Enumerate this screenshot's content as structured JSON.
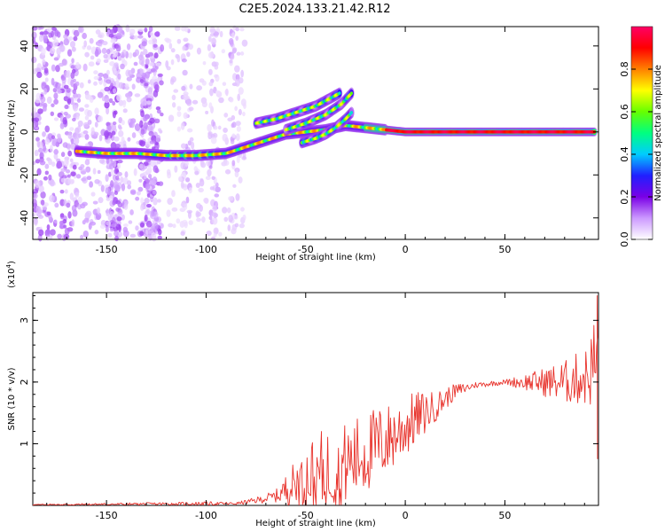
{
  "title": "C2E5.2024.133.21.42.R12",
  "chart_data": [
    {
      "type": "heatmap",
      "xlabel": "Height of straight line (km)",
      "ylabel": "Frequency (Hz)",
      "xlim": [
        -187,
        97
      ],
      "ylim": [
        -50,
        49
      ],
      "xticks": [
        -150,
        -100,
        -50,
        0,
        50
      ],
      "yticks": [
        -40,
        -20,
        0,
        20,
        40
      ],
      "colorbar": {
        "label": "Normalized spectral amplitude",
        "range": [
          0,
          1
        ],
        "ticks": [
          0.0,
          0.2,
          0.4,
          0.6,
          0.8
        ],
        "tick_labels": [
          "0.0",
          "0.2",
          "0.4",
          "0.6",
          "0.8"
        ],
        "colormap": [
          "#ffffff",
          "#cc99ff",
          "#7a00e6",
          "#2020ff",
          "#00ccff",
          "#00ff80",
          "#66ff00",
          "#ffff00",
          "#ff8000",
          "#ff0000",
          "#ff0066"
        ]
      },
      "features": [
        {
          "name": "main trace",
          "points": [
            [
              -165,
              -9
            ],
            [
              -150,
              -10
            ],
            [
              -135,
              -10
            ],
            [
              -120,
              -11
            ],
            [
              -105,
              -11
            ],
            [
              -90,
              -10
            ],
            [
              -80,
              -7
            ],
            [
              -70,
              -4
            ],
            [
              -60,
              -1
            ],
            [
              -50,
              0
            ],
            [
              -40,
              1
            ],
            [
              -30,
              3
            ],
            [
              -20,
              2
            ],
            [
              -10,
              1
            ],
            [
              0,
              0
            ],
            [
              20,
              0
            ],
            [
              50,
              0
            ],
            [
              80,
              0
            ],
            [
              95,
              0
            ]
          ]
        },
        {
          "name": "upper branch",
          "points": [
            [
              -75,
              4
            ],
            [
              -65,
              6
            ],
            [
              -55,
              9
            ],
            [
              -45,
              12
            ],
            [
              -35,
              17
            ],
            [
              -33,
              18
            ]
          ]
        },
        {
          "name": "middle branch",
          "points": [
            [
              -60,
              1
            ],
            [
              -50,
              4
            ],
            [
              -40,
              8
            ],
            [
              -32,
              13
            ],
            [
              -27,
              18
            ]
          ]
        },
        {
          "name": "lower branch",
          "points": [
            [
              -52,
              -5
            ],
            [
              -45,
              -3
            ],
            [
              -40,
              -1
            ],
            [
              -35,
              2
            ],
            [
              -30,
              6
            ],
            [
              -27,
              9
            ]
          ]
        }
      ]
    },
    {
      "type": "line",
      "xlabel": "Height of straight line (km)",
      "ylabel": "SNR (10 * v/v)",
      "y_multiplier": "(x10",
      "y_multiplier_exp": "4",
      "xlim": [
        -187,
        97
      ],
      "ylim": [
        0,
        3.45
      ],
      "xticks": [
        -150,
        -100,
        -50,
        0,
        50
      ],
      "yticks": [
        1,
        2,
        3
      ],
      "color": "#e8322b",
      "envelope": [
        {
          "x": -187,
          "mean": 0.01,
          "amp": 0.01
        },
        {
          "x": -100,
          "mean": 0.03,
          "amp": 0.03
        },
        {
          "x": -85,
          "mean": 0.03,
          "amp": 0.02
        },
        {
          "x": -75,
          "mean": 0.08,
          "amp": 0.05
        },
        {
          "x": -65,
          "mean": 0.15,
          "amp": 0.1
        },
        {
          "x": -55,
          "mean": 0.35,
          "amp": 0.4
        },
        {
          "x": -45,
          "mean": 0.5,
          "amp": 0.7
        },
        {
          "x": -35,
          "mean": 0.6,
          "amp": 0.65
        },
        {
          "x": -25,
          "mean": 0.75,
          "amp": 0.7
        },
        {
          "x": -15,
          "mean": 0.95,
          "amp": 0.65
        },
        {
          "x": -5,
          "mean": 1.15,
          "amp": 0.55
        },
        {
          "x": 5,
          "mean": 1.4,
          "amp": 0.45
        },
        {
          "x": 15,
          "mean": 1.6,
          "amp": 0.25
        },
        {
          "x": 25,
          "mean": 1.85,
          "amp": 0.12
        },
        {
          "x": 35,
          "mean": 1.95,
          "amp": 0.05
        },
        {
          "x": 50,
          "mean": 2.0,
          "amp": 0.04
        },
        {
          "x": 65,
          "mean": 2.0,
          "amp": 0.18
        },
        {
          "x": 80,
          "mean": 2.0,
          "amp": 0.35
        },
        {
          "x": 92,
          "mean": 2.1,
          "amp": 0.5
        },
        {
          "x": 96,
          "mean": 2.4,
          "amp": 0.9
        }
      ]
    }
  ]
}
